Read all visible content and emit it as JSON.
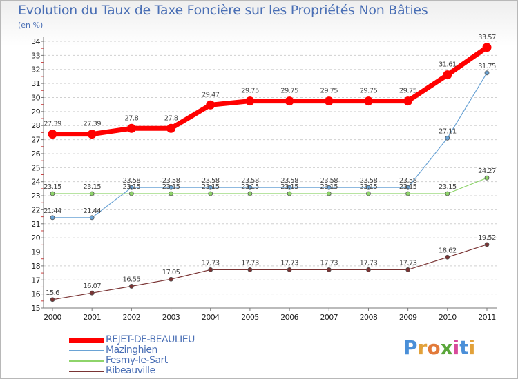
{
  "chart_data": {
    "type": "line",
    "title": "Evolution du Taux de Taxe Foncière sur les Propriétés Non Bâties",
    "ylabel": "(en %)",
    "xlabel": "",
    "categories": [
      "2000",
      "2001",
      "2002",
      "2003",
      "2004",
      "2005",
      "2006",
      "2007",
      "2008",
      "2009",
      "2010",
      "2011"
    ],
    "ylim": [
      15,
      34
    ],
    "yticks": [
      "15",
      "16",
      "17",
      "18",
      "19",
      "20",
      "21",
      "22",
      "23",
      "24",
      "25",
      "26",
      "27",
      "28",
      "29",
      "30",
      "31",
      "32",
      "33",
      "34"
    ],
    "series": [
      {
        "name": "REJET-DE-BEAULIEU",
        "color": "#ff0000",
        "values": [
          27.39,
          27.39,
          27.8,
          27.8,
          29.47,
          29.75,
          29.75,
          29.75,
          29.75,
          29.75,
          31.61,
          33.57
        ],
        "labels": [
          "27.39",
          "27.39",
          "27.8",
          "27.8",
          "29.47",
          "29.75",
          "29.75",
          "29.75",
          "29.75",
          "29.75",
          "31.61",
          "33.57"
        ]
      },
      {
        "name": "Mazinghien",
        "color": "#6aa3d5",
        "values": [
          21.44,
          21.44,
          23.58,
          23.58,
          23.58,
          23.58,
          23.58,
          23.58,
          23.58,
          23.58,
          27.11,
          31.75
        ],
        "labels": [
          "21.44",
          "21.44",
          "23.58",
          "23.58",
          "23.58",
          "23.58",
          "23.58",
          "23.58",
          "23.58",
          "23.58",
          "27.11",
          "31.75"
        ]
      },
      {
        "name": "Fesmy-le-Sart",
        "color": "#8ed46a",
        "values": [
          23.15,
          23.15,
          23.15,
          23.15,
          23.15,
          23.15,
          23.15,
          23.15,
          23.15,
          23.15,
          23.15,
          24.27
        ],
        "labels": [
          "23.15",
          "23.15",
          "23.15",
          "23.15",
          "23.15",
          "23.15",
          "23.15",
          "23.15",
          "23.15",
          "23.15",
          "23.15",
          "24.27"
        ]
      },
      {
        "name": "Ribeauville",
        "color": "#7a3434",
        "values": [
          15.6,
          16.07,
          16.55,
          17.05,
          17.73,
          17.73,
          17.73,
          17.73,
          17.73,
          17.73,
          18.62,
          19.52
        ],
        "labels": [
          "15.6",
          "16.07",
          "16.55",
          "17.05",
          "17.73",
          "17.73",
          "17.73",
          "17.73",
          "17.73",
          "17.73",
          "18.62",
          "19.52"
        ]
      }
    ],
    "legend": "bottom-left",
    "grid": "horizontal-dashed"
  },
  "logo": {
    "text": "Proxiti",
    "letters": [
      "P",
      "r",
      "o",
      "x",
      "i",
      "t",
      "i"
    ],
    "colors": [
      "#4a8fd8",
      "#e2a13a",
      "#e27a3a",
      "#5aa63a",
      "#d84a9a",
      "#4a8fd8",
      "#e2a13a"
    ]
  }
}
